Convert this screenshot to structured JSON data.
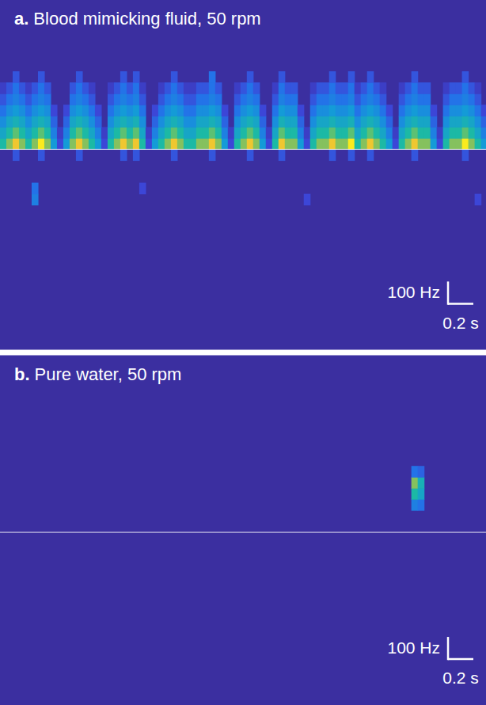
{
  "chart_data": [
    {
      "type": "spectrogram",
      "panel_label": "a.",
      "title": "Blood mimicking fluid, 50 rpm",
      "color": "parula",
      "grid": false,
      "tick_labels": false,
      "xlim": [
        0,
        3.84
      ],
      "ylim": [
        -900,
        670
      ],
      "zlim": [
        0,
        1
      ],
      "baseline": 0,
      "scale_bars": {
        "x": {
          "value": 0.2,
          "label": "0.2 s"
        },
        "y": {
          "value": 100,
          "label": "100 Hz"
        }
      },
      "x": [
        0.025,
        0.075,
        0.125,
        0.175,
        0.225,
        0.275,
        0.325,
        0.375,
        0.425,
        0.475,
        0.525,
        0.575,
        0.625,
        0.675,
        0.725,
        0.775,
        0.825,
        0.875,
        0.925,
        0.975,
        1.025,
        1.075,
        1.125,
        1.175,
        1.225,
        1.275,
        1.325,
        1.375,
        1.425,
        1.475,
        1.525,
        1.575,
        1.625,
        1.675,
        1.725,
        1.775,
        1.825,
        1.875,
        1.925,
        1.975,
        2.025,
        2.075,
        2.125,
        2.175,
        2.225,
        2.275,
        2.325,
        2.375,
        2.425,
        2.475,
        2.525,
        2.575,
        2.625,
        2.675,
        2.725,
        2.775,
        2.825,
        2.875,
        2.925,
        2.975,
        3.025,
        3.075,
        3.125,
        3.175,
        3.225,
        3.275,
        3.325,
        3.375,
        3.425,
        3.475,
        3.525,
        3.575,
        3.625,
        3.675,
        3.725,
        3.775,
        3.825
      ],
      "y": [
        -225,
        -175,
        -125,
        -75,
        -25,
        25,
        75,
        125,
        175,
        225,
        275,
        325
      ],
      "z": [
        [
          0,
          0,
          0,
          0,
          0,
          0.35,
          0,
          0,
          0,
          0,
          0,
          0,
          0,
          0,
          0,
          0,
          0,
          0,
          0,
          0,
          0,
          0,
          0,
          0,
          0,
          0,
          0,
          0,
          0,
          0,
          0,
          0,
          0,
          0,
          0,
          0,
          0,
          0,
          0,
          0,
          0,
          0,
          0,
          0,
          0,
          0,
          0,
          0,
          0.15,
          0,
          0,
          0,
          0,
          0,
          0,
          0,
          0,
          0,
          0,
          0,
          0,
          0,
          0,
          0,
          0,
          0,
          0,
          0,
          0,
          0,
          0,
          0,
          0,
          0,
          0,
          0.15,
          0
        ],
        [
          0,
          0,
          0,
          0,
          0,
          0.3,
          0,
          0,
          0,
          0,
          0,
          0,
          0,
          0,
          0,
          0,
          0,
          0,
          0,
          0,
          0,
          0,
          0.15,
          0,
          0,
          0,
          0,
          0,
          0,
          0,
          0,
          0,
          0,
          0,
          0,
          0,
          0,
          0,
          0,
          0,
          0,
          0,
          0,
          0,
          0,
          0,
          0,
          0,
          0,
          0,
          0,
          0,
          0,
          0,
          0,
          0,
          0,
          0,
          0,
          0,
          0,
          0,
          0,
          0,
          0,
          0,
          0,
          0,
          0,
          0,
          0,
          0,
          0,
          0,
          0,
          0,
          0
        ],
        [
          0,
          0,
          0,
          0,
          0,
          0,
          0,
          0,
          0,
          0,
          0,
          0,
          0,
          0,
          0,
          0,
          0,
          0,
          0,
          0,
          0,
          0,
          0,
          0,
          0,
          0,
          0,
          0,
          0,
          0,
          0,
          0,
          0,
          0,
          0,
          0,
          0,
          0,
          0,
          0,
          0,
          0,
          0,
          0,
          0,
          0,
          0,
          0,
          0,
          0,
          0,
          0,
          0,
          0,
          0,
          0,
          0,
          0,
          0,
          0,
          0,
          0,
          0,
          0,
          0,
          0,
          0,
          0,
          0,
          0,
          0,
          0,
          0,
          0,
          0,
          0,
          0
        ],
        [
          0,
          0,
          0,
          0,
          0,
          0,
          0,
          0,
          0,
          0,
          0,
          0,
          0,
          0,
          0,
          0,
          0,
          0,
          0,
          0,
          0,
          0,
          0,
          0,
          0,
          0,
          0,
          0,
          0,
          0,
          0,
          0,
          0,
          0,
          0,
          0,
          0,
          0,
          0,
          0,
          0,
          0,
          0,
          0,
          0,
          0,
          0,
          0,
          0,
          0,
          0,
          0,
          0,
          0,
          0,
          0,
          0,
          0,
          0,
          0,
          0,
          0,
          0,
          0,
          0,
          0,
          0,
          0,
          0,
          0,
          0,
          0,
          0,
          0,
          0,
          0,
          0
        ],
        [
          0,
          0,
          0.2,
          0,
          0,
          0,
          0.2,
          0,
          0,
          0,
          0,
          0,
          0.2,
          0,
          0,
          0,
          0,
          0,
          0,
          0.2,
          0,
          0.2,
          0,
          0,
          0,
          0,
          0,
          0.2,
          0,
          0,
          0,
          0,
          0,
          0.2,
          0,
          0,
          0,
          0,
          0,
          0.2,
          0,
          0,
          0,
          0,
          0.2,
          0,
          0,
          0,
          0,
          0,
          0,
          0,
          0.2,
          0,
          0,
          0.2,
          0,
          0,
          0.2,
          0,
          0,
          0,
          0,
          0,
          0,
          0.2,
          0,
          0,
          0,
          0,
          0,
          0,
          0,
          0.2,
          0,
          0,
          0
        ],
        [
          0.6,
          0.75,
          0.9,
          0.75,
          0.6,
          0.75,
          1,
          0.75,
          0.45,
          0.15,
          0.45,
          0.75,
          0.9,
          0.75,
          0.6,
          0.45,
          0.15,
          0.6,
          0.75,
          0.9,
          0.75,
          0.9,
          0.6,
          0.15,
          0.45,
          0.6,
          0.75,
          0.9,
          0.75,
          0.6,
          0.6,
          0.75,
          0.75,
          0.9,
          0.75,
          0.45,
          0.15,
          0.6,
          0.75,
          0.9,
          0.75,
          0.45,
          0.15,
          0.6,
          0.9,
          0.75,
          0.75,
          0.45,
          0.15,
          0.6,
          0.75,
          0.75,
          0.9,
          0.75,
          0.75,
          1,
          0.6,
          0.75,
          0.9,
          0.75,
          0.6,
          0.45,
          0.15,
          0.6,
          0.75,
          0.9,
          0.75,
          0.75,
          0.45,
          0.15,
          0.6,
          0.75,
          0.75,
          1,
          0.75,
          0.6,
          0.45
        ],
        [
          0.5,
          0.6,
          0.7,
          0.6,
          0.5,
          0.6,
          0.7,
          0.6,
          0.35,
          0.1,
          0.35,
          0.6,
          0.7,
          0.6,
          0.5,
          0.35,
          0.1,
          0.5,
          0.6,
          0.7,
          0.6,
          0.7,
          0.5,
          0.1,
          0.35,
          0.5,
          0.6,
          0.7,
          0.6,
          0.5,
          0.5,
          0.6,
          0.6,
          0.7,
          0.6,
          0.35,
          0.1,
          0.5,
          0.6,
          0.7,
          0.6,
          0.35,
          0.1,
          0.5,
          0.7,
          0.6,
          0.6,
          0.35,
          0.1,
          0.5,
          0.6,
          0.6,
          0.7,
          0.6,
          0.6,
          0.7,
          0.5,
          0.6,
          0.7,
          0.6,
          0.5,
          0.35,
          0.1,
          0.5,
          0.6,
          0.7,
          0.6,
          0.6,
          0.35,
          0.1,
          0.5,
          0.6,
          0.6,
          0.7,
          0.6,
          0.5,
          0.35
        ],
        [
          0.4,
          0.5,
          0.55,
          0.5,
          0.4,
          0.5,
          0.55,
          0.5,
          0.25,
          0,
          0.25,
          0.5,
          0.55,
          0.5,
          0.4,
          0.25,
          0,
          0.4,
          0.5,
          0.55,
          0.5,
          0.55,
          0.4,
          0,
          0.25,
          0.4,
          0.5,
          0.55,
          0.5,
          0.4,
          0.4,
          0.5,
          0.5,
          0.55,
          0.5,
          0.25,
          0,
          0.4,
          0.5,
          0.55,
          0.5,
          0.25,
          0,
          0.4,
          0.55,
          0.5,
          0.5,
          0.25,
          0,
          0.4,
          0.5,
          0.5,
          0.55,
          0.5,
          0.5,
          0.55,
          0.4,
          0.5,
          0.55,
          0.5,
          0.4,
          0.25,
          0,
          0.4,
          0.5,
          0.55,
          0.5,
          0.5,
          0.25,
          0,
          0.4,
          0.5,
          0.5,
          0.55,
          0.5,
          0.4,
          0.25
        ],
        [
          0.3,
          0.4,
          0.45,
          0.4,
          0.3,
          0.4,
          0.45,
          0.4,
          0.15,
          0,
          0.15,
          0.4,
          0.45,
          0.4,
          0.3,
          0.15,
          0,
          0.3,
          0.4,
          0.45,
          0.4,
          0.45,
          0.3,
          0,
          0.15,
          0.3,
          0.4,
          0.45,
          0.4,
          0.3,
          0.3,
          0.4,
          0.4,
          0.45,
          0.4,
          0.15,
          0,
          0.3,
          0.4,
          0.45,
          0.4,
          0.15,
          0,
          0.3,
          0.45,
          0.4,
          0.4,
          0.15,
          0,
          0.3,
          0.4,
          0.4,
          0.45,
          0.4,
          0.4,
          0.45,
          0.3,
          0.4,
          0.45,
          0.4,
          0.3,
          0.15,
          0,
          0.3,
          0.4,
          0.45,
          0.4,
          0.4,
          0.15,
          0,
          0.3,
          0.4,
          0.4,
          0.45,
          0.4,
          0.3,
          0.15
        ],
        [
          0.2,
          0.3,
          0.35,
          0.3,
          0.2,
          0.3,
          0.35,
          0.3,
          0,
          0,
          0,
          0.3,
          0.35,
          0.3,
          0.2,
          0,
          0,
          0.2,
          0.3,
          0.35,
          0.3,
          0.35,
          0.2,
          0,
          0,
          0.2,
          0.3,
          0.35,
          0.3,
          0.2,
          0.2,
          0.3,
          0.3,
          0.35,
          0.3,
          0,
          0,
          0.2,
          0.3,
          0.35,
          0.3,
          0,
          0,
          0.2,
          0.35,
          0.3,
          0.3,
          0,
          0,
          0.2,
          0.3,
          0.3,
          0.35,
          0.3,
          0.3,
          0.35,
          0.2,
          0.3,
          0.35,
          0.3,
          0.2,
          0,
          0,
          0.2,
          0.3,
          0.35,
          0.3,
          0.3,
          0,
          0,
          0.2,
          0.3,
          0.3,
          0.35,
          0.3,
          0.2,
          0
        ],
        [
          0.1,
          0.2,
          0.3,
          0.2,
          0.1,
          0.2,
          0.3,
          0.2,
          0,
          0,
          0,
          0.2,
          0.3,
          0.2,
          0.1,
          0,
          0,
          0.1,
          0.2,
          0.3,
          0.2,
          0.3,
          0.1,
          0,
          0,
          0.1,
          0.2,
          0.3,
          0.2,
          0.1,
          0.1,
          0.2,
          0.2,
          0.3,
          0.2,
          0,
          0,
          0.1,
          0.2,
          0.3,
          0.2,
          0,
          0,
          0.1,
          0.3,
          0.2,
          0.2,
          0,
          0,
          0.1,
          0.2,
          0.2,
          0.3,
          0.2,
          0.2,
          0.3,
          0.1,
          0.2,
          0.3,
          0.2,
          0.1,
          0,
          0,
          0.1,
          0.2,
          0.3,
          0.2,
          0.2,
          0,
          0,
          0.1,
          0.2,
          0.2,
          0.3,
          0.2,
          0.1,
          0
        ],
        [
          0,
          0,
          0.2,
          0,
          0,
          0,
          0.2,
          0,
          0,
          0,
          0,
          0,
          0.2,
          0,
          0,
          0,
          0,
          0,
          0,
          0.2,
          0,
          0.2,
          0,
          0,
          0,
          0,
          0,
          0.2,
          0,
          0,
          0,
          0,
          0,
          0.3,
          0,
          0,
          0,
          0,
          0,
          0.2,
          0,
          0,
          0,
          0,
          0.2,
          0,
          0,
          0,
          0,
          0,
          0,
          0,
          0.2,
          0,
          0,
          0.2,
          0,
          0,
          0.2,
          0,
          0,
          0,
          0,
          0,
          0,
          0.2,
          0,
          0,
          0,
          0,
          0,
          0,
          0,
          0.2,
          0,
          0,
          0
        ]
      ]
    },
    {
      "type": "spectrogram",
      "panel_label": "b.",
      "title": "Pure water, 50 rpm",
      "color": "parula",
      "grid": false,
      "tick_labels": false,
      "xlim": [
        0,
        3.84
      ],
      "ylim": [
        -780,
        800
      ],
      "zlim": [
        0,
        1
      ],
      "baseline": 0,
      "scale_bars": {
        "x": {
          "value": 0.2,
          "label": "0.2 s"
        },
        "y": {
          "value": 100,
          "label": "100 Hz"
        }
      },
      "x": [
        3.275,
        3.325
      ],
      "y": [
        125,
        175,
        225,
        275
      ],
      "z": [
        [
          0.35,
          0.3
        ],
        [
          0.6,
          0.5
        ],
        [
          0.75,
          0.55
        ],
        [
          0.3,
          0.25
        ]
      ]
    }
  ]
}
